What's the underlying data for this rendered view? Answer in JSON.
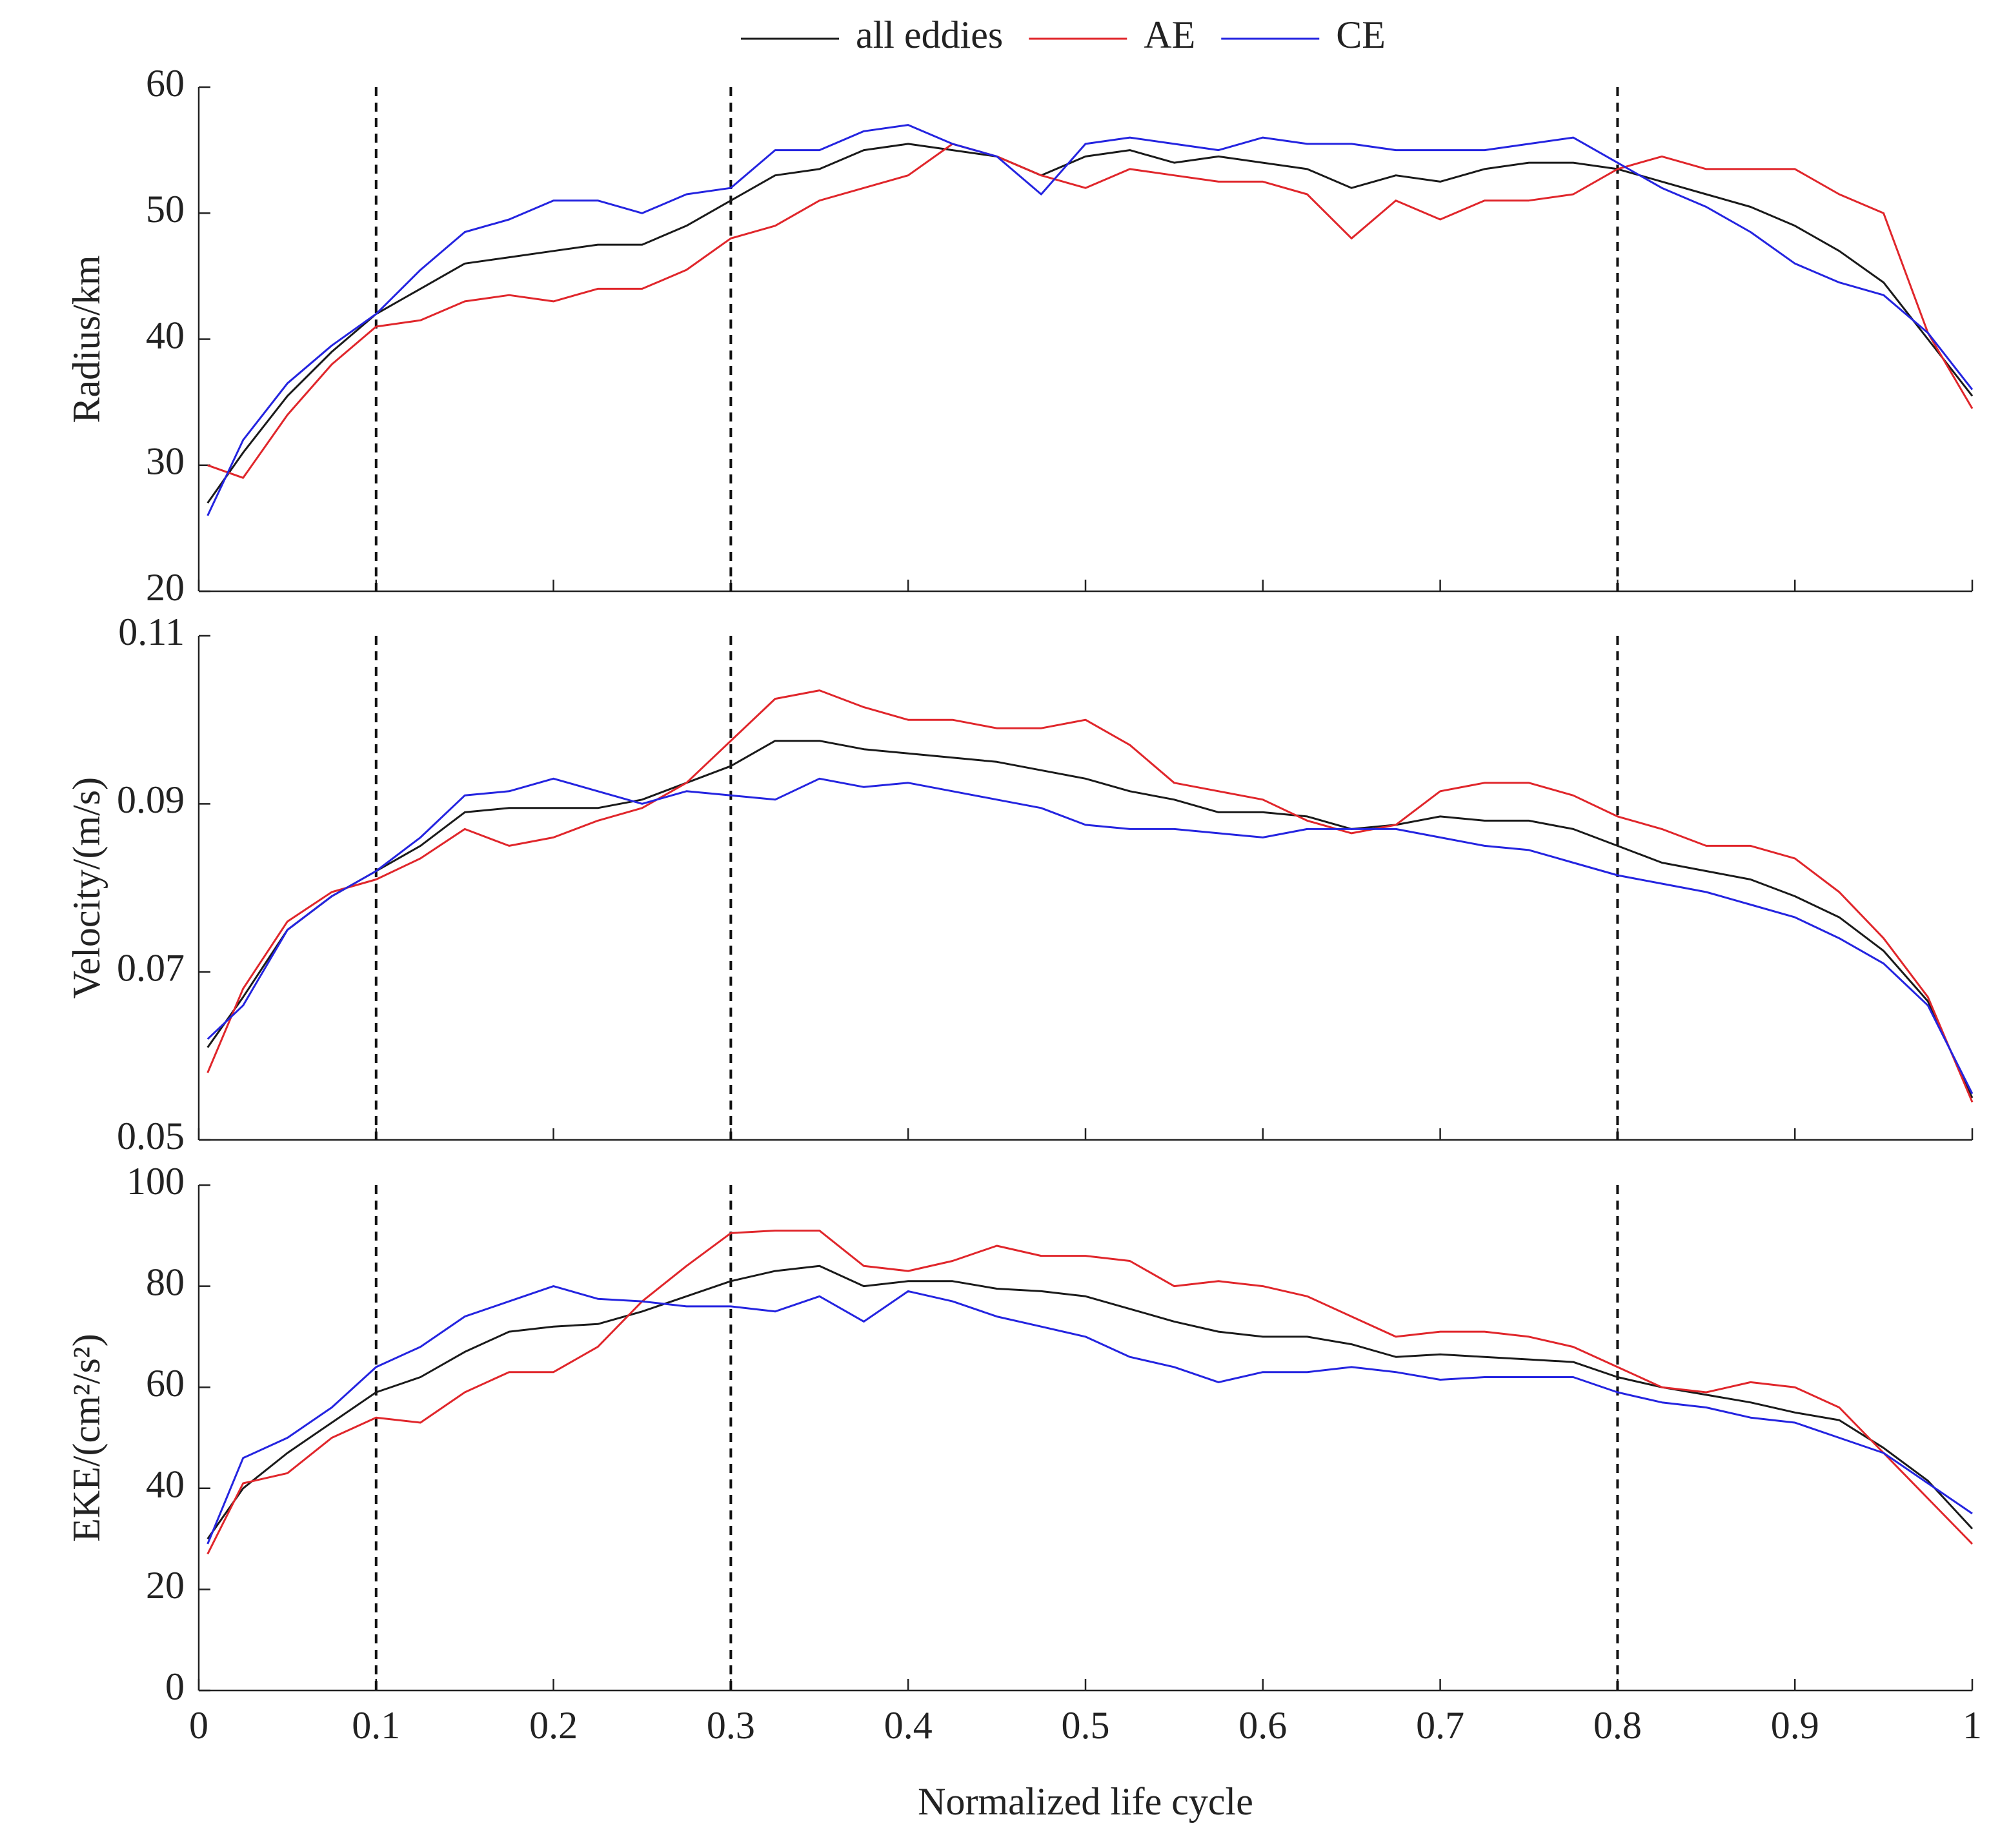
{
  "chart_data": [
    {
      "type": "line",
      "ylabel": "Radius/km",
      "xlim": [
        0,
        1
      ],
      "xticks": [
        0,
        0.1,
        0.2,
        0.3,
        0.4,
        0.5,
        0.6,
        0.7,
        0.8,
        0.9,
        1
      ],
      "ylim": [
        20,
        60
      ],
      "yticks": [
        20,
        30,
        40,
        50,
        60
      ],
      "vlines": [
        0.1,
        0.3,
        0.8
      ],
      "x": [
        0.005,
        0.025,
        0.05,
        0.075,
        0.1,
        0.125,
        0.15,
        0.175,
        0.2,
        0.225,
        0.25,
        0.275,
        0.3,
        0.325,
        0.35,
        0.375,
        0.4,
        0.425,
        0.45,
        0.475,
        0.5,
        0.525,
        0.55,
        0.575,
        0.6,
        0.625,
        0.65,
        0.675,
        0.7,
        0.725,
        0.75,
        0.775,
        0.8,
        0.825,
        0.85,
        0.875,
        0.9,
        0.925,
        0.95,
        0.975,
        1
      ],
      "series": [
        {
          "name": "all eddies",
          "color": "#1a1a1a",
          "values": [
            27,
            31,
            35.5,
            39,
            42,
            44,
            46,
            46.5,
            47,
            47.5,
            47.5,
            49,
            51,
            53,
            53.5,
            55,
            55.5,
            55,
            54.5,
            53,
            54.5,
            55,
            54,
            54.5,
            54,
            53.5,
            52,
            53,
            52.5,
            53.5,
            54,
            54,
            53.5,
            52.5,
            51.5,
            50.5,
            49,
            47,
            44.5,
            40,
            35.5
          ]
        },
        {
          "name": "AE",
          "color": "#e0262b",
          "values": [
            30,
            29,
            34,
            38,
            41,
            41.5,
            43,
            43.5,
            43,
            44,
            44,
            45.5,
            48,
            49,
            51,
            52,
            53,
            55.5,
            54.5,
            53,
            52,
            53.5,
            53,
            52.5,
            52.5,
            51.5,
            48,
            51,
            49.5,
            51,
            51,
            51.5,
            53.5,
            54.5,
            53.5,
            53.5,
            53.5,
            51.5,
            50,
            40.5,
            34.5
          ]
        },
        {
          "name": "CE",
          "color": "#2424e0",
          "values": [
            26,
            32,
            36.5,
            39.5,
            42,
            45.5,
            48.5,
            49.5,
            51,
            51,
            50,
            51.5,
            52,
            55,
            55,
            56.5,
            57,
            55.5,
            54.5,
            51.5,
            55.5,
            56,
            55.5,
            55,
            56,
            55.5,
            55.5,
            55,
            55,
            55,
            55.5,
            56,
            54,
            52,
            50.5,
            48.5,
            46,
            44.5,
            43.5,
            40.5,
            36
          ]
        }
      ]
    },
    {
      "type": "line",
      "ylabel": "Velocity/(m/s)",
      "xlim": [
        0,
        1
      ],
      "xticks": [
        0,
        0.1,
        0.2,
        0.3,
        0.4,
        0.5,
        0.6,
        0.7,
        0.8,
        0.9,
        1
      ],
      "ylim": [
        0.05,
        0.11
      ],
      "yticks": [
        0.05,
        0.07,
        0.09,
        0.11
      ],
      "vlines": [
        0.1,
        0.3,
        0.8
      ],
      "x": [
        0.005,
        0.025,
        0.05,
        0.075,
        0.1,
        0.125,
        0.15,
        0.175,
        0.2,
        0.225,
        0.25,
        0.275,
        0.3,
        0.325,
        0.35,
        0.375,
        0.4,
        0.425,
        0.45,
        0.475,
        0.5,
        0.525,
        0.55,
        0.575,
        0.6,
        0.625,
        0.65,
        0.675,
        0.7,
        0.725,
        0.75,
        0.775,
        0.8,
        0.825,
        0.85,
        0.875,
        0.9,
        0.925,
        0.95,
        0.975,
        1
      ],
      "series": [
        {
          "color": "#1a1a1a",
          "values": [
            0.061,
            0.067,
            0.075,
            0.079,
            0.082,
            0.085,
            0.089,
            0.0895,
            0.0895,
            0.0895,
            0.0905,
            0.0925,
            0.0945,
            0.0975,
            0.0975,
            0.0965,
            0.096,
            0.0955,
            0.095,
            0.094,
            0.093,
            0.0915,
            0.0905,
            0.089,
            0.089,
            0.0885,
            0.087,
            0.0875,
            0.0885,
            0.088,
            0.088,
            0.087,
            0.085,
            0.083,
            0.082,
            0.081,
            0.079,
            0.0765,
            0.0725,
            0.0665,
            0.055
          ]
        },
        {
          "color": "#e0262b",
          "values": [
            0.058,
            0.068,
            0.076,
            0.0795,
            0.081,
            0.0835,
            0.087,
            0.085,
            0.086,
            0.088,
            0.0895,
            0.0925,
            0.0975,
            0.1025,
            0.1035,
            0.1015,
            0.1,
            0.1,
            0.099,
            0.099,
            0.1,
            0.097,
            0.0925,
            0.0915,
            0.0905,
            0.088,
            0.0865,
            0.0875,
            0.0915,
            0.0925,
            0.0925,
            0.091,
            0.0885,
            0.087,
            0.085,
            0.085,
            0.0835,
            0.0795,
            0.074,
            0.067,
            0.0545
          ]
        },
        {
          "color": "#2424e0",
          "values": [
            0.062,
            0.066,
            0.075,
            0.079,
            0.082,
            0.086,
            0.091,
            0.0915,
            0.093,
            0.0915,
            0.09,
            0.0915,
            0.091,
            0.0905,
            0.093,
            0.092,
            0.0925,
            0.0915,
            0.0905,
            0.0895,
            0.0875,
            0.087,
            0.087,
            0.0865,
            0.086,
            0.087,
            0.087,
            0.087,
            0.086,
            0.085,
            0.0845,
            0.083,
            0.0815,
            0.0805,
            0.0795,
            0.078,
            0.0765,
            0.074,
            0.071,
            0.066,
            0.0555
          ]
        }
      ]
    },
    {
      "type": "line",
      "ylabel": "EKE/(cm²/s²)",
      "xlabel": "Normalized life cycle",
      "xlim": [
        0,
        1
      ],
      "xticks": [
        0,
        0.1,
        0.2,
        0.3,
        0.4,
        0.5,
        0.6,
        0.7,
        0.8,
        0.9,
        1
      ],
      "ylim": [
        0,
        100
      ],
      "yticks": [
        0,
        20,
        40,
        60,
        80,
        100
      ],
      "vlines": [
        0.1,
        0.3,
        0.8
      ],
      "x": [
        0.005,
        0.025,
        0.05,
        0.075,
        0.1,
        0.125,
        0.15,
        0.175,
        0.2,
        0.225,
        0.25,
        0.275,
        0.3,
        0.325,
        0.35,
        0.375,
        0.4,
        0.425,
        0.45,
        0.475,
        0.5,
        0.525,
        0.55,
        0.575,
        0.6,
        0.625,
        0.65,
        0.675,
        0.7,
        0.725,
        0.75,
        0.775,
        0.8,
        0.825,
        0.85,
        0.875,
        0.9,
        0.925,
        0.95,
        0.975,
        1
      ],
      "series": [
        {
          "color": "#1a1a1a",
          "values": [
            30,
            40,
            47,
            53,
            59,
            62,
            67,
            71,
            72,
            72.5,
            75,
            78,
            81,
            83,
            84,
            80,
            81,
            81,
            79.5,
            79,
            78,
            75.5,
            73,
            71,
            70,
            70,
            68.5,
            66,
            66.5,
            66,
            65.5,
            65,
            62,
            60,
            58.5,
            57,
            55,
            53.5,
            48,
            41.5,
            32
          ]
        },
        {
          "color": "#e0262b",
          "values": [
            27,
            41,
            43,
            50,
            54,
            53,
            59,
            63,
            63,
            68,
            77,
            84,
            90.5,
            91,
            91,
            84,
            83,
            85,
            88,
            86,
            86,
            85,
            80,
            81,
            80,
            78,
            74,
            70,
            71,
            71,
            70,
            68,
            64,
            60,
            59,
            61,
            60,
            56,
            47,
            38,
            29
          ]
        },
        {
          "color": "#2424e0",
          "values": [
            29,
            46,
            50,
            56,
            64,
            68,
            74,
            77,
            80,
            77.5,
            77,
            76,
            76,
            75,
            78,
            73,
            79,
            77,
            74,
            72,
            70,
            66,
            64,
            61,
            63,
            63,
            64,
            63,
            61.5,
            62,
            62,
            62,
            59,
            57,
            56,
            54,
            53,
            50,
            47,
            41,
            35
          ]
        }
      ]
    }
  ]
}
